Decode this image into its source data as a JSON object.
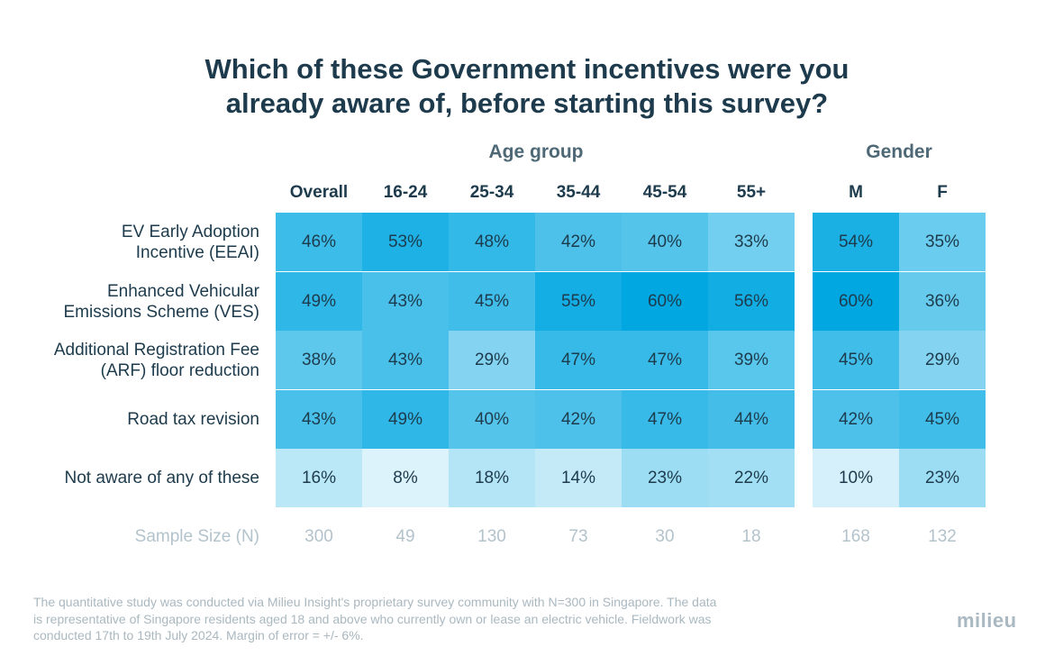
{
  "title_line1": "Which of these Government incentives were you",
  "title_line2": "already aware of, before starting this survey?",
  "chart_data": {
    "type": "heatmap",
    "title": "Which of these Government incentives were you already aware of, before starting this survey?",
    "groups": [
      {
        "label": "",
        "columns": [
          "Overall"
        ]
      },
      {
        "label": "Age group",
        "columns": [
          "16-24",
          "25-34",
          "35-44",
          "45-54",
          "55+"
        ]
      },
      {
        "label": "Gender",
        "columns": [
          "M",
          "F"
        ]
      }
    ],
    "columns": [
      "Overall",
      "16-24",
      "25-34",
      "35-44",
      "45-54",
      "55+",
      "M",
      "F"
    ],
    "rows": [
      {
        "label_lines": [
          "EV Early Adoption",
          "Incentive (EEAI)"
        ],
        "values": [
          46,
          53,
          48,
          42,
          40,
          33,
          54,
          35
        ]
      },
      {
        "label_lines": [
          "Enhanced Vehicular",
          "Emissions Scheme (VES)"
        ],
        "values": [
          49,
          43,
          45,
          55,
          60,
          56,
          60,
          36
        ]
      },
      {
        "label_lines": [
          "Additional Registration Fee",
          "(ARF) floor reduction"
        ],
        "values": [
          38,
          43,
          29,
          47,
          47,
          39,
          45,
          29
        ]
      },
      {
        "label_lines": [
          "Road tax revision"
        ],
        "values": [
          43,
          49,
          40,
          42,
          47,
          44,
          42,
          45
        ]
      },
      {
        "label_lines": [
          "Not aware of any of these"
        ],
        "values": [
          16,
          8,
          18,
          14,
          23,
          22,
          10,
          23
        ]
      }
    ],
    "value_suffix": "%",
    "sample_size_label": "Sample Size (N)",
    "sample_sizes": [
      300,
      49,
      130,
      73,
      30,
      18,
      168,
      132
    ],
    "colors": {
      "low": "#ffffff",
      "high": "#00a7e1"
    }
  },
  "footnote_lines": [
    "The quantitative study was conducted via Milieu Insight's proprietary survey community with N=300 in Singapore. The data",
    "is representative of Singapore residents aged 18 and above who currently own or lease an electric vehicle. Fieldwork was",
    "conducted 17th to 19th July 2024. Margin of error = +/- 6%."
  ],
  "logo_text": "milieu"
}
